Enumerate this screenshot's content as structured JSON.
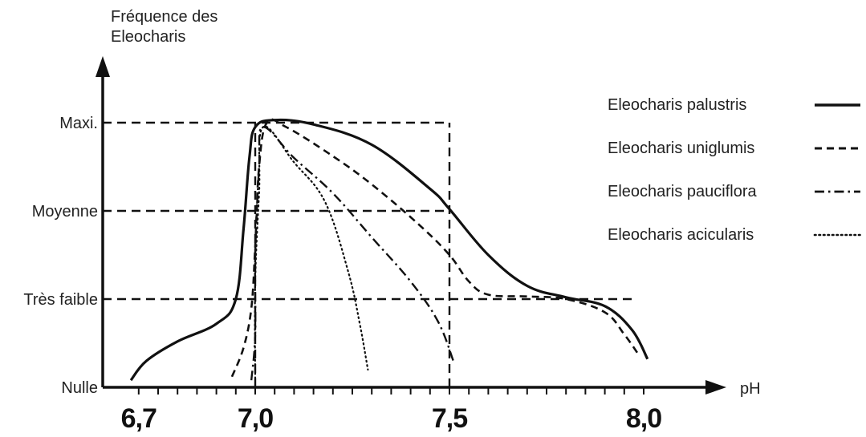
{
  "chart_data": {
    "type": "line",
    "ylabel_lines": [
      "Fréquence des",
      "Eleocharis"
    ],
    "xlabel": "pH",
    "x_ticks": [
      {
        "value": 6.7,
        "label": "6,7"
      },
      {
        "value": 7.0,
        "label": "7,0"
      },
      {
        "value": 7.5,
        "label": "7,5"
      },
      {
        "value": 8.0,
        "label": "8,0"
      }
    ],
    "y_levels": [
      {
        "value": 0,
        "label": "Nulle"
      },
      {
        "value": 1,
        "label": "Très faible"
      },
      {
        "value": 2,
        "label": "Moyenne"
      },
      {
        "value": 3,
        "label": "Maxi."
      }
    ],
    "xlim": [
      6.58,
      8.2
    ],
    "ylim": [
      0,
      3.6
    ],
    "series": [
      {
        "name": "Eleocharis palustris",
        "style": "solid",
        "points": [
          [
            6.68,
            0.08
          ],
          [
            6.72,
            0.3
          ],
          [
            6.8,
            0.52
          ],
          [
            6.9,
            0.72
          ],
          [
            6.95,
            1.0
          ],
          [
            6.97,
            1.8
          ],
          [
            6.985,
            2.6
          ],
          [
            7.0,
            2.95
          ],
          [
            7.05,
            3.03
          ],
          [
            7.15,
            2.98
          ],
          [
            7.3,
            2.75
          ],
          [
            7.45,
            2.25
          ],
          [
            7.5,
            2.02
          ],
          [
            7.6,
            1.5
          ],
          [
            7.7,
            1.15
          ],
          [
            7.8,
            1.02
          ],
          [
            7.9,
            0.92
          ],
          [
            7.97,
            0.65
          ],
          [
            8.01,
            0.32
          ]
        ]
      },
      {
        "name": "Eleocharis uniglumis",
        "style": "dashed",
        "points": [
          [
            6.94,
            0.12
          ],
          [
            6.97,
            0.45
          ],
          [
            6.99,
            0.9
          ],
          [
            7.0,
            1.6
          ],
          [
            7.01,
            2.5
          ],
          [
            7.03,
            3.0
          ],
          [
            7.08,
            2.95
          ],
          [
            7.2,
            2.62
          ],
          [
            7.3,
            2.3
          ],
          [
            7.42,
            1.85
          ],
          [
            7.5,
            1.5
          ],
          [
            7.55,
            1.2
          ],
          [
            7.6,
            1.05
          ],
          [
            7.7,
            1.03
          ],
          [
            7.8,
            1.0
          ],
          [
            7.9,
            0.85
          ],
          [
            7.95,
            0.6
          ],
          [
            7.99,
            0.35
          ]
        ]
      },
      {
        "name": "Eleocharis pauciflora",
        "style": "dashdot",
        "points": [
          [
            6.99,
            0.08
          ],
          [
            7.0,
            0.6
          ],
          [
            7.0,
            1.5
          ],
          [
            7.01,
            2.5
          ],
          [
            7.02,
            2.95
          ],
          [
            7.1,
            2.6
          ],
          [
            7.2,
            2.2
          ],
          [
            7.3,
            1.7
          ],
          [
            7.4,
            1.2
          ],
          [
            7.47,
            0.75
          ],
          [
            7.51,
            0.3
          ]
        ]
      },
      {
        "name": "Eleocharis acicularis",
        "style": "dotted",
        "points": [
          [
            7.0,
            0.1
          ],
          [
            7.0,
            1.2
          ],
          [
            7.01,
            2.2
          ],
          [
            7.02,
            2.95
          ],
          [
            7.1,
            2.55
          ],
          [
            7.18,
            2.1
          ],
          [
            7.24,
            1.3
          ],
          [
            7.27,
            0.7
          ],
          [
            7.29,
            0.2
          ]
        ]
      }
    ],
    "reference_lines": [
      {
        "type": "h",
        "y": 3,
        "x_from": 6.58,
        "x_to": 7.5
      },
      {
        "type": "h",
        "y": 2,
        "x_from": 6.58,
        "x_to": 7.5
      },
      {
        "type": "h",
        "y": 1,
        "x_from": 6.58,
        "x_to": 7.98
      },
      {
        "type": "v",
        "x": 7.0,
        "y_from": 0,
        "y_to": 3
      },
      {
        "type": "v",
        "x": 7.5,
        "y_from": 0,
        "y_to": 3
      }
    ],
    "legend_position": "right",
    "colors": {
      "ink": "#111111",
      "background": "#ffffff"
    },
    "grid": false
  }
}
